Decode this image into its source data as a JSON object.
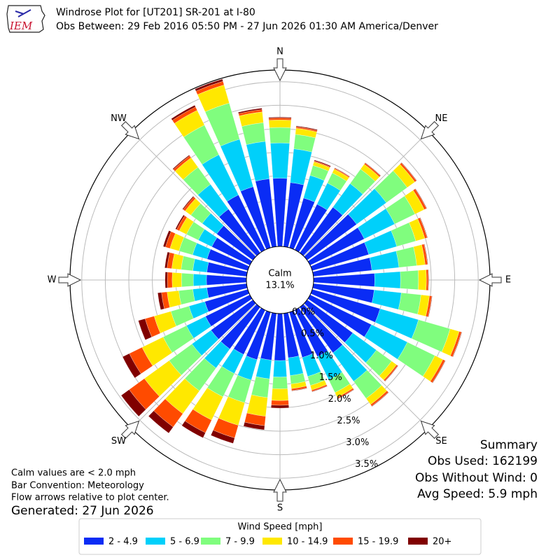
{
  "chart_data": {
    "type": "windrose",
    "logo_text": "IEM",
    "title": "Windrose Plot for [UT201] SR-201 at I-80",
    "subtitle": "Obs Between: 29 Feb 2016 05:50 PM - 27 Jun 2026 01:30 AM America/Denver",
    "xlim": [
      0,
      360
    ],
    "xticks": [
      {
        "value": 0,
        "label": "N"
      },
      {
        "value": 45,
        "label": "NE"
      },
      {
        "value": 90,
        "label": "E"
      },
      {
        "value": 135,
        "label": "SE"
      },
      {
        "value": 180,
        "label": "S"
      },
      {
        "value": 225,
        "label": "SW"
      },
      {
        "value": 270,
        "label": "W"
      },
      {
        "value": 315,
        "label": "NW"
      }
    ],
    "ylim": [
      0,
      3.75
    ],
    "yticks": [
      {
        "value": 0,
        "label": "0.0%"
      },
      {
        "value": 0.5,
        "label": "0.5%"
      },
      {
        "value": 1,
        "label": "1.0%"
      },
      {
        "value": 1.5,
        "label": "1.5%"
      },
      {
        "value": 2,
        "label": "2.0%"
      },
      {
        "value": 2.5,
        "label": "2.5%"
      },
      {
        "value": 3,
        "label": "3.0%"
      },
      {
        "value": 3.5,
        "label": "3.5%"
      }
    ],
    "calm": {
      "label": "Calm",
      "value": 13.1,
      "value_label": "13.1%"
    },
    "legend_title": "Wind Speed [mph]",
    "series": [
      {
        "name": "2 - 4.9",
        "color": "#0a2cf5",
        "values": [
          1.45,
          1.37,
          1.1,
          1.08,
          1.2,
          1.3,
          1.28,
          1.25,
          1.25,
          1.3,
          1.3,
          1.5,
          1.45,
          1.2,
          1.2,
          1.1,
          1.0,
          0.95,
          1.0,
          1.0,
          1.05,
          1.05,
          1.1,
          1.1,
          1.05,
          0.95,
          0.85,
          0.85,
          0.85,
          0.9,
          0.9,
          0.95,
          1.15,
          1.3,
          1.35,
          1.45
        ]
      },
      {
        "name": "5 - 6.9",
        "color": "#00d0fa",
        "values": [
          0.75,
          0.72,
          0.5,
          0.5,
          0.62,
          0.78,
          0.72,
          0.62,
          0.58,
          0.55,
          0.58,
          0.85,
          0.85,
          0.62,
          0.75,
          0.55,
          0.42,
          0.38,
          0.35,
          0.4,
          0.45,
          0.45,
          0.5,
          0.5,
          0.45,
          0.35,
          0.3,
          0.28,
          0.3,
          0.32,
          0.32,
          0.38,
          0.65,
          0.95,
          1.05,
          0.8
        ]
      },
      {
        "name": "7 - 9.9",
        "color": "#80fd7e",
        "values": [
          0.33,
          0.31,
          0.22,
          0.24,
          0.38,
          0.55,
          0.48,
          0.42,
          0.38,
          0.38,
          0.42,
          0.7,
          0.65,
          0.4,
          0.45,
          0.3,
          0.2,
          0.18,
          0.25,
          0.4,
          0.5,
          0.55,
          0.6,
          0.6,
          0.55,
          0.4,
          0.3,
          0.25,
          0.25,
          0.3,
          0.28,
          0.3,
          0.45,
          0.7,
          0.8,
          0.4
        ]
      },
      {
        "name": "10 - 14.9",
        "color": "#ffe800",
        "values": [
          0.16,
          0.13,
          0.08,
          0.09,
          0.13,
          0.2,
          0.22,
          0.2,
          0.18,
          0.17,
          0.18,
          0.2,
          0.19,
          0.13,
          0.16,
          0.11,
          0.1,
          0.1,
          0.25,
          0.4,
          0.5,
          0.55,
          0.6,
          0.65,
          0.5,
          0.37,
          0.25,
          0.2,
          0.2,
          0.2,
          0.17,
          0.15,
          0.25,
          0.35,
          0.4,
          0.23
        ]
      },
      {
        "name": "15 - 19.9",
        "color": "#ff4b00",
        "values": [
          0.04,
          0.03,
          0.02,
          0.02,
          0.03,
          0.04,
          0.05,
          0.05,
          0.05,
          0.04,
          0.05,
          0.05,
          0.05,
          0.03,
          0.04,
          0.03,
          0.03,
          0.04,
          0.1,
          0.2,
          0.28,
          0.3,
          0.35,
          0.4,
          0.3,
          0.2,
          0.12,
          0.1,
          0.1,
          0.1,
          0.06,
          0.05,
          0.05,
          0.08,
          0.08,
          0.05
        ]
      },
      {
        "name": "20+",
        "color": "#800000",
        "values": [
          0.02,
          0.02,
          0.02,
          0.01,
          0.01,
          0.01,
          0.01,
          0.01,
          0.01,
          0.01,
          0.01,
          0.01,
          0.01,
          0.01,
          0.01,
          0.01,
          0.01,
          0.01,
          0.06,
          0.09,
          0.12,
          0.12,
          0.16,
          0.21,
          0.16,
          0.15,
          0.08,
          0.05,
          0.05,
          0.05,
          0.03,
          0.02,
          0.02,
          0.04,
          0.05,
          0.03
        ]
      }
    ],
    "notes": [
      "Calm values are < 2.0 mph",
      "Bar Convention: Meteorology",
      "Flow arrows relative to plot center."
    ],
    "generated": "Generated: 27 Jun 2026",
    "summary": [
      "Summary",
      "Obs Used: 162199",
      "Obs Without Wind: 0",
      "Avg Speed: 5.9 mph"
    ]
  }
}
